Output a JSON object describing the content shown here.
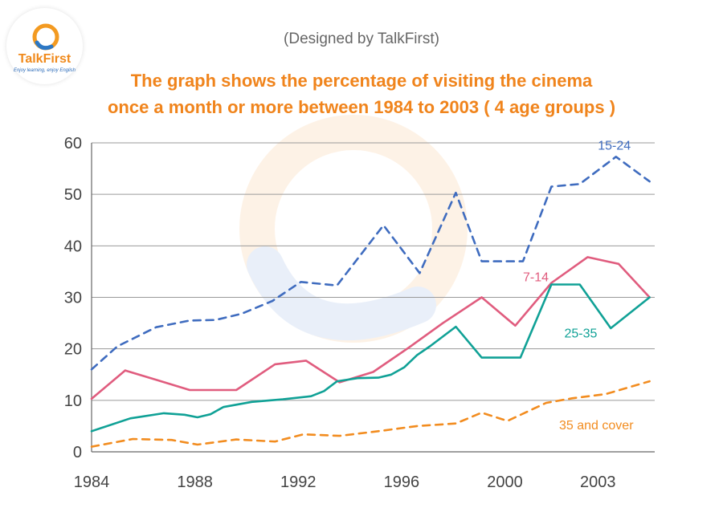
{
  "credit": "(Designed by TalkFirst)",
  "logo": {
    "brand": "TalkFirst",
    "tagline": "Enjoy learning, enjoy English"
  },
  "chart_data": {
    "type": "line",
    "title_line1": "The graph shows the percentage of visiting the cinema",
    "title_line2": "once a month or more between 1984 to 2003 ( 4 age groups )",
    "xlabel": "",
    "ylabel": "",
    "ylim": [
      0,
      60
    ],
    "xlim": [
      1984,
      2005.8
    ],
    "y_ticks": [
      0,
      10,
      20,
      30,
      40,
      50,
      60
    ],
    "x_ticks": [
      {
        "value": 1984,
        "label": "1984"
      },
      {
        "value": 1988,
        "label": "1988"
      },
      {
        "value": 1992,
        "label": "1992"
      },
      {
        "value": 1996,
        "label": "1996"
      },
      {
        "value": 2000,
        "label": "2000"
      },
      {
        "value": 2003.6,
        "label": "2003"
      }
    ],
    "grid": true,
    "series": [
      {
        "name": "15-24",
        "color": "#3f6cbf",
        "dash": true,
        "label_at": [
          2003.6,
          58.7
        ],
        "points": [
          [
            1984,
            16
          ],
          [
            1985,
            20.5
          ],
          [
            1986.5,
            24.2
          ],
          [
            1987.8,
            25.5
          ],
          [
            1988.8,
            25.6
          ],
          [
            1989.8,
            26.8
          ],
          [
            1991,
            29.3
          ],
          [
            1992.1,
            33
          ],
          [
            1993.5,
            32.3
          ],
          [
            1995.3,
            44
          ],
          [
            1996.7,
            34.7
          ],
          [
            1998.1,
            50.3
          ],
          [
            1999.1,
            37
          ],
          [
            2000.7,
            37
          ],
          [
            2001.8,
            51.5
          ],
          [
            2002.9,
            52
          ],
          [
            2004.3,
            57.3
          ],
          [
            2005.6,
            52.5
          ]
        ]
      },
      {
        "name": "7-14",
        "color": "#e05c7e",
        "dash": false,
        "label_at": [
          2000.7,
          33.1
        ],
        "points": [
          [
            1984,
            10.3
          ],
          [
            1985.3,
            15.8
          ],
          [
            1986.5,
            14
          ],
          [
            1987.8,
            12
          ],
          [
            1989.6,
            12
          ],
          [
            1991.1,
            17
          ],
          [
            1992.3,
            17.7
          ],
          [
            1993.6,
            13.5
          ],
          [
            1994.9,
            15.5
          ],
          [
            1996.3,
            20.3
          ],
          [
            1997.6,
            25
          ],
          [
            1999.1,
            30
          ],
          [
            2000.4,
            24.5
          ],
          [
            2001.8,
            32.8
          ],
          [
            2003.2,
            37.8
          ],
          [
            2004.4,
            36.5
          ],
          [
            2005.6,
            30
          ]
        ]
      },
      {
        "name": "25-35",
        "color": "#10a196",
        "dash": false,
        "label_at": [
          2002.3,
          22.2
        ],
        "points": [
          [
            1984,
            4
          ],
          [
            1985.5,
            6.5
          ],
          [
            1986.8,
            7.5
          ],
          [
            1987.6,
            7.2
          ],
          [
            1988.1,
            6.7
          ],
          [
            1988.6,
            7.3
          ],
          [
            1989.1,
            8.7
          ],
          [
            1990.2,
            9.7
          ],
          [
            1991.4,
            10.2
          ],
          [
            1992.5,
            10.8
          ],
          [
            1993,
            11.8
          ],
          [
            1993.5,
            13.7
          ],
          [
            1994.3,
            14.3
          ],
          [
            1995.1,
            14.4
          ],
          [
            1995.6,
            15
          ],
          [
            1996.1,
            16.4
          ],
          [
            1996.6,
            18.8
          ],
          [
            1997.1,
            20.5
          ],
          [
            1998.1,
            24.3
          ],
          [
            1999.1,
            18.3
          ],
          [
            2000.6,
            18.3
          ],
          [
            2001.8,
            32.5
          ],
          [
            2002.9,
            32.5
          ],
          [
            2004.1,
            24
          ],
          [
            2005.6,
            30
          ]
        ]
      },
      {
        "name": "35 and cover",
        "color": "#f28c1f",
        "dash": true,
        "label_at": [
          2002.1,
          4.4
        ],
        "points": [
          [
            1984,
            1
          ],
          [
            1985.6,
            2.5
          ],
          [
            1987.1,
            2.3
          ],
          [
            1988.1,
            1.4
          ],
          [
            1989.6,
            2.4
          ],
          [
            1991.1,
            2
          ],
          [
            1992.2,
            3.4
          ],
          [
            1993.6,
            3.1
          ],
          [
            1995.1,
            4
          ],
          [
            1996.6,
            5
          ],
          [
            1998.1,
            5.5
          ],
          [
            1999.1,
            7.6
          ],
          [
            2000.1,
            6
          ],
          [
            2001.6,
            9.5
          ],
          [
            2002.6,
            10.4
          ],
          [
            2003.9,
            11.2
          ],
          [
            2005.6,
            13.7
          ]
        ]
      }
    ]
  }
}
